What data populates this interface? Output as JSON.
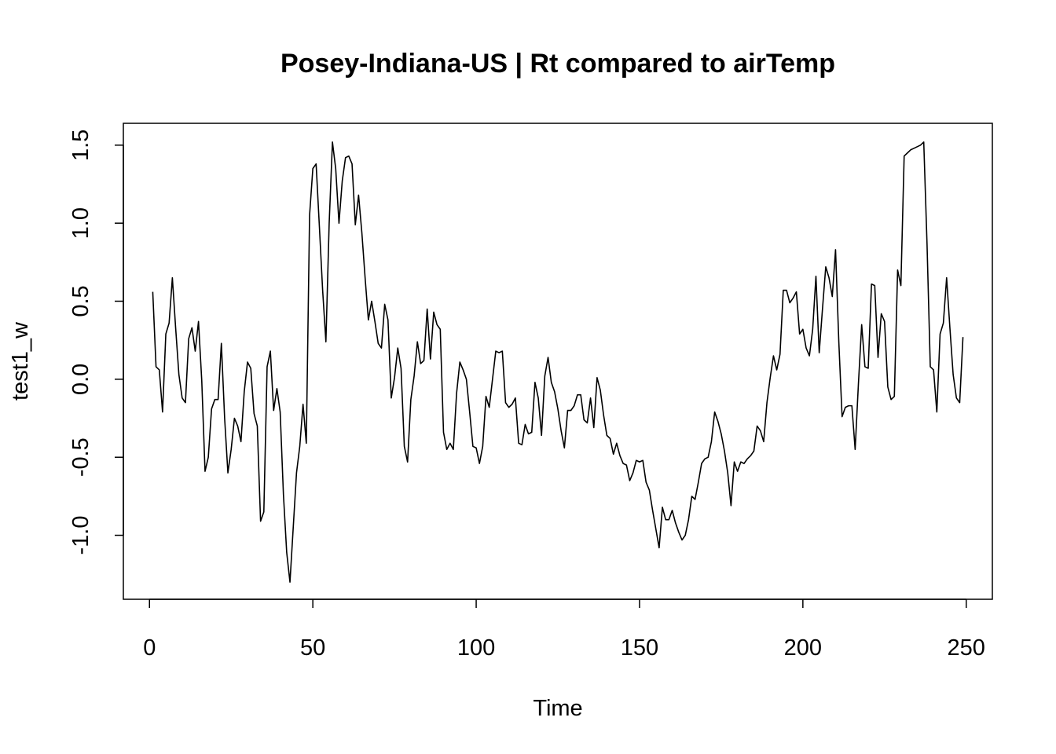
{
  "chart_data": {
    "type": "line",
    "title": "Posey-Indiana-US | Rt compared to airTemp",
    "xlabel": "Time",
    "ylabel": "test1_w",
    "xlim": [
      -8,
      258
    ],
    "ylim": [
      -1.41,
      1.64
    ],
    "x_ticks": [
      0,
      50,
      100,
      150,
      200,
      250
    ],
    "x_tick_labels": [
      "0",
      "50",
      "100",
      "150",
      "200",
      "250"
    ],
    "y_ticks": [
      -1.0,
      -0.5,
      0.0,
      0.5,
      1.0,
      1.5
    ],
    "y_tick_labels": [
      "-1.0",
      "-0.5",
      "0.0",
      "0.5",
      "1.0",
      "1.5"
    ],
    "grid": false,
    "legend": "none",
    "line_color": "#000000",
    "series": [
      {
        "x_start": 1,
        "values": [
          0.56,
          0.08,
          0.06,
          -0.21,
          0.29,
          0.36,
          0.65,
          0.33,
          0.03,
          -0.12,
          -0.15,
          0.26,
          0.33,
          0.18,
          0.37,
          -0.01,
          -0.59,
          -0.5,
          -0.19,
          -0.13,
          -0.13,
          0.23,
          -0.25,
          -0.6,
          -0.45,
          -0.25,
          -0.3,
          -0.4,
          -0.08,
          0.11,
          0.07,
          -0.22,
          -0.3,
          -0.91,
          -0.85,
          0.08,
          0.18,
          -0.2,
          -0.06,
          -0.21,
          -0.74,
          -1.11,
          -1.3,
          -0.95,
          -0.6,
          -0.43,
          -0.16,
          -0.41,
          1.05,
          1.35,
          1.38,
          0.98,
          0.57,
          0.24,
          1.0,
          1.52,
          1.35,
          1.0,
          1.27,
          1.42,
          1.43,
          1.38,
          0.99,
          1.18,
          0.94,
          0.65,
          0.38,
          0.5,
          0.37,
          0.23,
          0.2,
          0.48,
          0.38,
          -0.12,
          0.01,
          0.2,
          0.07,
          -0.43,
          -0.53,
          -0.13,
          0.02,
          0.24,
          0.1,
          0.12,
          0.45,
          0.13,
          0.43,
          0.35,
          0.32,
          -0.34,
          -0.45,
          -0.41,
          -0.45,
          -0.09,
          0.11,
          0.06,
          0.0,
          -0.21,
          -0.43,
          -0.44,
          -0.54,
          -0.43,
          -0.11,
          -0.18,
          0.0,
          0.18,
          0.17,
          0.18,
          -0.15,
          -0.18,
          -0.16,
          -0.12,
          -0.41,
          -0.42,
          -0.29,
          -0.35,
          -0.34,
          -0.02,
          -0.12,
          -0.36,
          0.02,
          0.14,
          -0.02,
          -0.08,
          -0.19,
          -0.33,
          -0.44,
          -0.2,
          -0.2,
          -0.17,
          -0.1,
          -0.1,
          -0.26,
          -0.28,
          -0.12,
          -0.31,
          0.01,
          -0.07,
          -0.23,
          -0.36,
          -0.38,
          -0.48,
          -0.41,
          -0.49,
          -0.54,
          -0.55,
          -0.65,
          -0.6,
          -0.52,
          -0.53,
          -0.52,
          -0.66,
          -0.71,
          -0.84,
          -0.96,
          -1.08,
          -0.82,
          -0.9,
          -0.9,
          -0.84,
          -0.92,
          -0.98,
          -1.03,
          -1.0,
          -0.9,
          -0.75,
          -0.77,
          -0.66,
          -0.54,
          -0.51,
          -0.5,
          -0.4,
          -0.21,
          -0.27,
          -0.35,
          -0.46,
          -0.6,
          -0.81,
          -0.53,
          -0.59,
          -0.53,
          -0.54,
          -0.51,
          -0.49,
          -0.46,
          -0.3,
          -0.33,
          -0.4,
          -0.15,
          0.01,
          0.15,
          0.06,
          0.16,
          0.57,
          0.57,
          0.49,
          0.52,
          0.56,
          0.29,
          0.32,
          0.2,
          0.15,
          0.32,
          0.66,
          0.17,
          0.45,
          0.72,
          0.65,
          0.53,
          0.83,
          0.24,
          -0.24,
          -0.18,
          -0.17,
          -0.17,
          -0.45,
          -0.03,
          0.35,
          0.08,
          0.07,
          0.61,
          0.6,
          0.14,
          0.42,
          0.37,
          -0.05,
          -0.13,
          -0.11,
          0.7,
          0.6,
          1.43,
          1.45,
          1.47,
          1.48,
          1.49,
          1.5,
          1.52,
          0.87,
          0.08,
          0.06,
          -0.21,
          0.29,
          0.36,
          0.65,
          0.33,
          0.03,
          -0.12,
          -0.15,
          0.27
        ]
      }
    ]
  }
}
